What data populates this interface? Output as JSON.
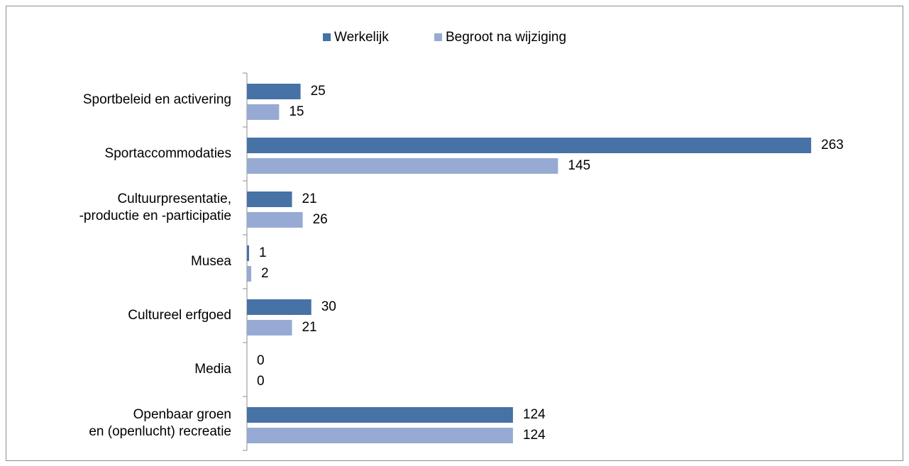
{
  "chart_data": {
    "type": "bar",
    "orientation": "horizontal",
    "categories": [
      "Sportbeleid en activering",
      "Sportaccommodaties",
      "Cultuurpresentatie,\n-productie en -participatie",
      "Musea",
      "Cultureel erfgoed",
      "Media",
      "Openbaar groen\nen (openlucht) recreatie"
    ],
    "series": [
      {
        "name": "Werkelijk",
        "color": "#4672a6",
        "values": [
          25,
          263,
          21,
          1,
          30,
          0,
          124
        ]
      },
      {
        "name": "Begroot na wijziging",
        "color": "#97aad4",
        "values": [
          15,
          145,
          26,
          2,
          21,
          0,
          124
        ]
      }
    ],
    "xlim": [
      0,
      300
    ],
    "legend": "top"
  }
}
